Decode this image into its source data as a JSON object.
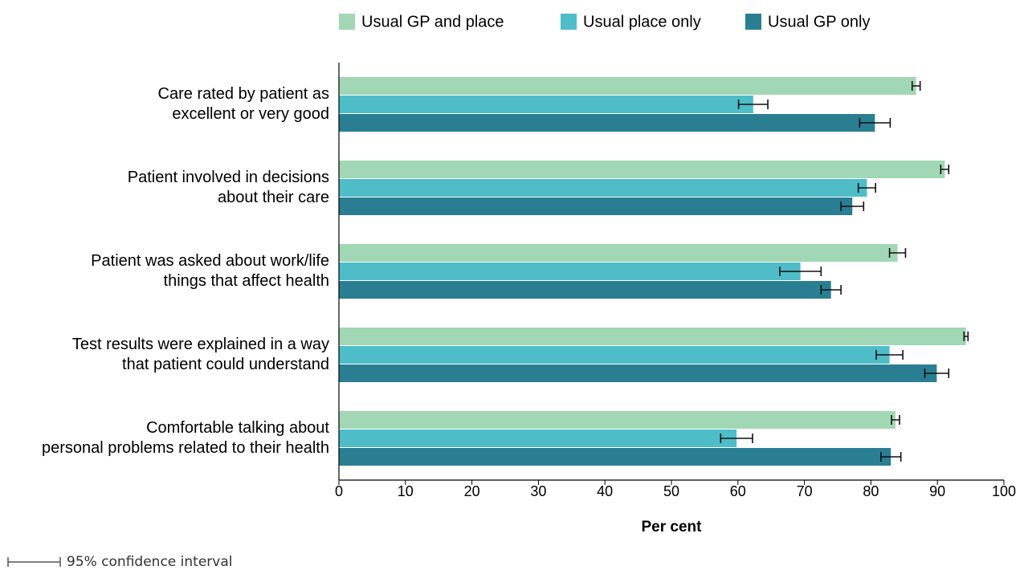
{
  "chart_data": {
    "type": "bar",
    "orientation": "horizontal",
    "xlabel": "Per cent",
    "note": "95% confidence interval",
    "categories": [
      [
        "Care rated by patient as",
        "excellent or very good"
      ],
      [
        "Patient involved in decisions",
        "about their care"
      ],
      [
        "Patient was asked about work/life",
        "things that affect health"
      ],
      [
        "Test results were explained in a way",
        "that patient could understand"
      ],
      [
        "Comfortable talking about",
        "personal problems related to their health"
      ]
    ],
    "series": [
      {
        "name": "Usual GP and place",
        "color": "#a1d7b4",
        "values": [
          86.8,
          91.1,
          84.0,
          94.3,
          83.7
        ],
        "errors": [
          0.6,
          0.6,
          1.2,
          0.3,
          0.6
        ]
      },
      {
        "name": "Usual place only",
        "color": "#4ebdc8",
        "values": [
          62.3,
          79.4,
          69.4,
          82.8,
          59.8
        ],
        "errors": [
          2.2,
          1.3,
          3.1,
          2.0,
          2.4
        ]
      },
      {
        "name": "Usual GP only",
        "color": "#2a7e92",
        "values": [
          80.6,
          77.2,
          74.0,
          89.9,
          83.0
        ],
        "errors": [
          2.3,
          1.7,
          1.5,
          1.8,
          1.5
        ]
      }
    ],
    "xlim": [
      0,
      100
    ],
    "xticks": [
      0,
      10,
      20,
      30,
      40,
      50,
      60,
      70,
      80,
      90,
      100
    ],
    "legend": "top"
  }
}
